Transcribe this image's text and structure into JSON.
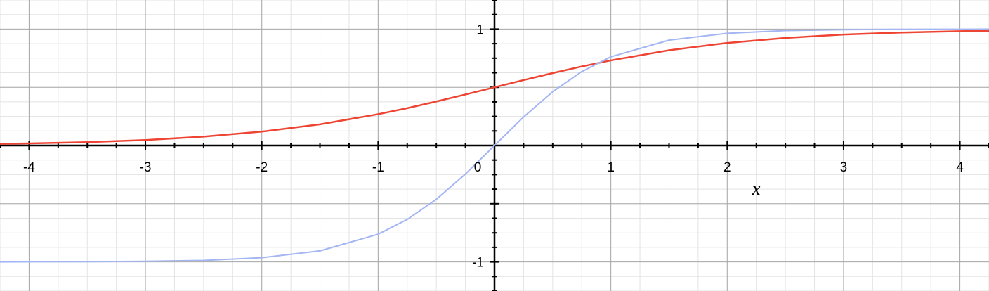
{
  "chart_data": {
    "type": "line",
    "title": "",
    "xlabel": "x",
    "ylabel": "",
    "xlim": [
      -4.25,
      4.25
    ],
    "ylim": [
      -1.25,
      1.25
    ],
    "grid": true,
    "legend": "none",
    "x_ticks": [
      {
        "value": -4,
        "label": "-4"
      },
      {
        "value": -3,
        "label": "-3"
      },
      {
        "value": -2,
        "label": "-2"
      },
      {
        "value": -1,
        "label": "-1"
      },
      {
        "value": 0,
        "label": "0"
      },
      {
        "value": 1,
        "label": "1"
      },
      {
        "value": 2,
        "label": "2"
      },
      {
        "value": 3,
        "label": "3"
      },
      {
        "value": 4,
        "label": "4"
      }
    ],
    "y_ticks": [
      {
        "value": 1,
        "label": "1"
      },
      {
        "value": -1,
        "label": "-1"
      }
    ],
    "x": [
      -4.25,
      -4.0,
      -3.5,
      -3.0,
      -2.5,
      -2.0,
      -1.5,
      -1.0,
      -0.75,
      -0.5,
      -0.25,
      0.0,
      0.25,
      0.5,
      0.75,
      1.0,
      1.5,
      2.0,
      2.5,
      3.0,
      3.5,
      4.0,
      4.25
    ],
    "series": [
      {
        "color": "#ee4433",
        "values": [
          0.014,
          0.018,
          0.029,
          0.047,
          0.076,
          0.119,
          0.182,
          0.269,
          0.321,
          0.378,
          0.438,
          0.5,
          0.562,
          0.622,
          0.679,
          0.731,
          0.818,
          0.881,
          0.924,
          0.953,
          0.971,
          0.982,
          0.986
        ]
      },
      {
        "color": "#a3b5f2",
        "values": [
          -1.0,
          -0.999,
          -0.998,
          -0.995,
          -0.987,
          -0.964,
          -0.905,
          -0.762,
          -0.635,
          -0.462,
          -0.245,
          0.0,
          0.245,
          0.462,
          0.635,
          0.762,
          0.905,
          0.964,
          0.987,
          0.995,
          0.998,
          0.999,
          1.0
        ]
      }
    ]
  }
}
